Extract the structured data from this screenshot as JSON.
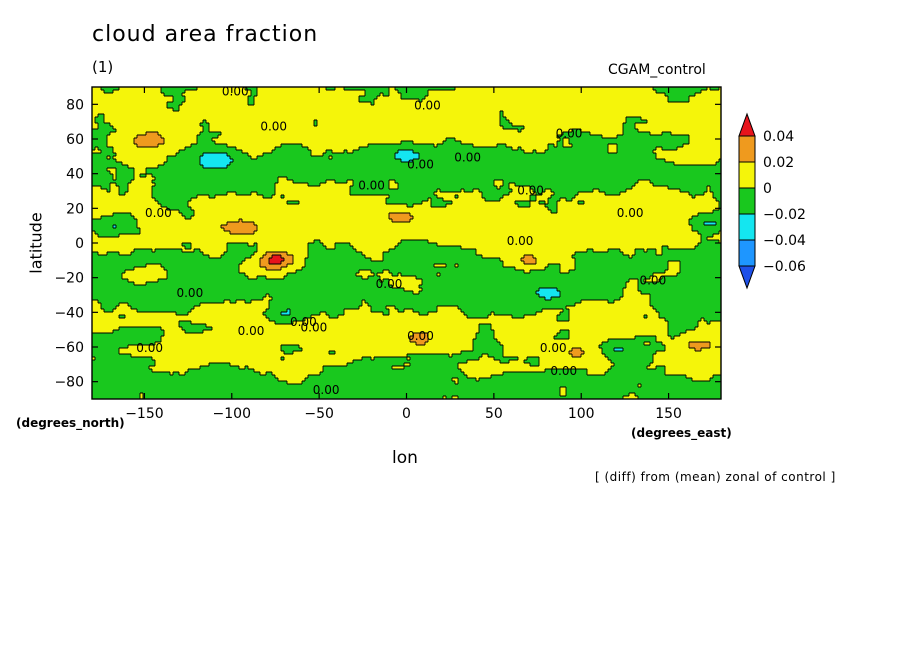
{
  "header": {
    "title": "cloud area fraction",
    "subtitle": "(1)",
    "run": "CGAM_control"
  },
  "footer": {
    "note": "[ (diff) from (mean) zonal of control ]"
  },
  "chart_data": {
    "type": "heatmap",
    "title": "cloud area fraction",
    "xlabel": "lon",
    "ylabel": "latitude",
    "x_units": "(degrees_east)",
    "y_units": "(degrees_north)",
    "xlim": [
      -180,
      180
    ],
    "ylim": [
      -90,
      90
    ],
    "xticks": [
      -150,
      -100,
      -50,
      0,
      50,
      100,
      150
    ],
    "yticks": [
      -80,
      -60,
      -40,
      -20,
      0,
      20,
      40,
      60,
      80
    ],
    "xtick_labels": [
      "−150",
      "−100",
      "−50",
      "0",
      "50",
      "100",
      "150"
    ],
    "ytick_labels": [
      "−80",
      "−60",
      "−40",
      "−20",
      "0",
      "20",
      "40",
      "60",
      "80"
    ],
    "contour_label": "0.00",
    "contour_label_positions": [
      [
        -98,
        87
      ],
      [
        12,
        79
      ],
      [
        -76,
        67
      ],
      [
        93,
        63
      ],
      [
        35,
        49
      ],
      [
        8,
        45
      ],
      [
        -20,
        33
      ],
      [
        71,
        30
      ],
      [
        128,
        17
      ],
      [
        -142,
        17
      ],
      [
        65,
        1
      ],
      [
        -124,
        -29
      ],
      [
        -10,
        -24
      ],
      [
        141,
        -22
      ],
      [
        -59,
        -46
      ],
      [
        -53,
        -49
      ],
      [
        -89,
        -51
      ],
      [
        8,
        -54
      ],
      [
        -147,
        -61
      ],
      [
        84,
        -61
      ],
      [
        90,
        -74
      ],
      [
        -46,
        -85
      ]
    ],
    "colorbar": {
      "levels": [
        "0.04",
        "0.02",
        "0",
        "−0.02",
        "−0.04",
        "−0.06"
      ],
      "bins": [
        {
          "range": "> 0.04",
          "color": "#e8141c"
        },
        {
          "range": "0.02 – 0.04",
          "color": "#ef9a1e"
        },
        {
          "range": "0 – 0.02",
          "color": "#f5f50a"
        },
        {
          "range": "−0.02 – 0",
          "color": "#19c81e"
        },
        {
          "range": "−0.04 – −0.02",
          "color": "#14e6f0"
        },
        {
          "range": "−0.06 – −0.04",
          "color": "#1e96ff"
        },
        {
          "range": "< −0.06",
          "color": "#1e50e8"
        }
      ]
    },
    "positive_anomalies": [
      [
        -75,
        -8,
        0.045
      ],
      [
        -95,
        10,
        0.035
      ],
      [
        68,
        -9,
        0.03
      ],
      [
        -148,
        60,
        0.03
      ],
      [
        160,
        50,
        0.025
      ],
      [
        -5,
        16,
        0.025
      ],
      [
        95,
        -62,
        0.025
      ],
      [
        165,
        -58,
        0.025
      ],
      [
        -150,
        -17,
        0.02
      ],
      [
        5,
        -55,
        0.02
      ],
      [
        -80,
        -13,
        0.02
      ]
    ],
    "negative_anomalies": [
      [
        -110,
        49,
        -0.03
      ],
      [
        -170,
        10,
        -0.03
      ],
      [
        172,
        12,
        -0.03
      ],
      [
        -155,
        -53,
        -0.025
      ],
      [
        120,
        -60,
        -0.025
      ],
      [
        -70,
        -40,
        -0.025
      ],
      [
        0,
        52,
        -0.02
      ],
      [
        80,
        -28,
        -0.02
      ]
    ],
    "grid": false,
    "legend": "right"
  }
}
